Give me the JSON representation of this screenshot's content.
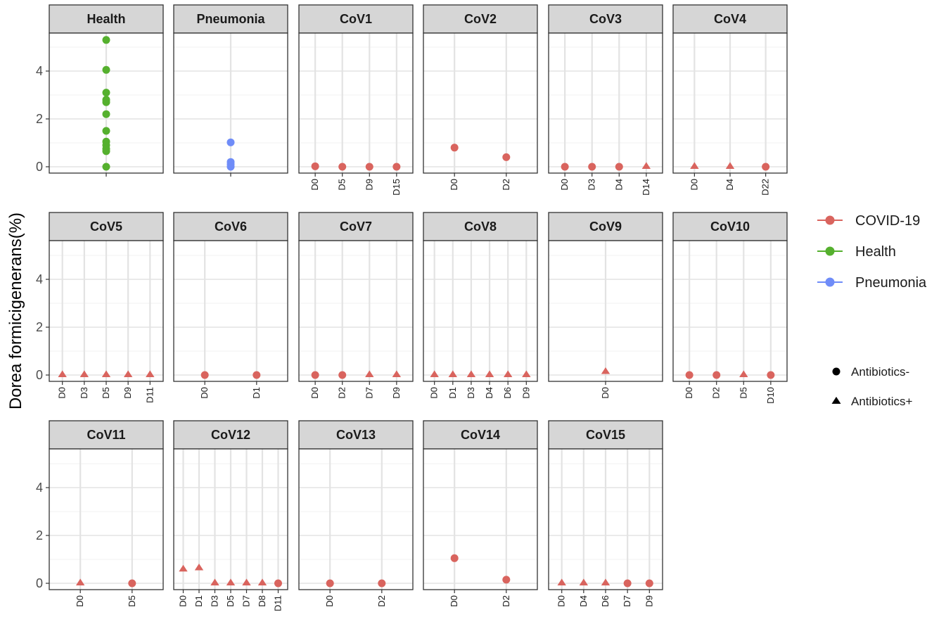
{
  "chart_data": {
    "type": "scatter",
    "ylabel": "Dorea formicigenerans(%)",
    "ylim": [
      0,
      5.6
    ],
    "yticks": [
      0,
      2,
      4
    ],
    "grid": true,
    "legend_position": "right",
    "colors": {
      "COVID-19": "#d9645e",
      "Health": "#55b02e",
      "Pneumonia": "#6f8cf8"
    },
    "legend": {
      "groups": [
        "COVID-19",
        "Health",
        "Pneumonia"
      ],
      "shapes": [
        {
          "label": "Antibiotics-",
          "shape": "circle"
        },
        {
          "label": "Antibiotics+",
          "shape": "triangle"
        }
      ]
    },
    "panels": [
      {
        "title": "Health",
        "group": "Health",
        "x": [
          ""
        ],
        "points": [
          {
            "x": "",
            "y": 5.3,
            "ab": "-"
          },
          {
            "x": "",
            "y": 4.05,
            "ab": "-"
          },
          {
            "x": "",
            "y": 3.1,
            "ab": "-"
          },
          {
            "x": "",
            "y": 2.8,
            "ab": "-"
          },
          {
            "x": "",
            "y": 2.7,
            "ab": "-"
          },
          {
            "x": "",
            "y": 2.2,
            "ab": "-"
          },
          {
            "x": "",
            "y": 1.5,
            "ab": "-"
          },
          {
            "x": "",
            "y": 1.05,
            "ab": "-"
          },
          {
            "x": "",
            "y": 0.9,
            "ab": "-"
          },
          {
            "x": "",
            "y": 0.75,
            "ab": "-"
          },
          {
            "x": "",
            "y": 0.65,
            "ab": "-"
          },
          {
            "x": "",
            "y": 0.0,
            "ab": "-"
          }
        ]
      },
      {
        "title": "Pneumonia",
        "group": "Pneumonia",
        "x": [
          ""
        ],
        "points": [
          {
            "x": "",
            "y": 1.02,
            "ab": "-"
          },
          {
            "x": "",
            "y": 0.2,
            "ab": "-"
          },
          {
            "x": "",
            "y": 0.1,
            "ab": "-"
          },
          {
            "x": "",
            "y": 0.0,
            "ab": "-"
          }
        ]
      },
      {
        "title": "CoV1",
        "group": "COVID-19",
        "x": [
          "D0",
          "D5",
          "D9",
          "D15"
        ],
        "points": [
          {
            "x": "D0",
            "y": 0.02,
            "ab": "-"
          },
          {
            "x": "D5",
            "y": 0.0,
            "ab": "-"
          },
          {
            "x": "D9",
            "y": 0.0,
            "ab": "-"
          },
          {
            "x": "D15",
            "y": 0.0,
            "ab": "-"
          }
        ]
      },
      {
        "title": "CoV2",
        "group": "COVID-19",
        "x": [
          "D0",
          "D2"
        ],
        "points": [
          {
            "x": "D0",
            "y": 0.8,
            "ab": "-"
          },
          {
            "x": "D2",
            "y": 0.4,
            "ab": "-"
          }
        ]
      },
      {
        "title": "CoV3",
        "group": "COVID-19",
        "x": [
          "D0",
          "D3",
          "D4",
          "D14"
        ],
        "points": [
          {
            "x": "D0",
            "y": 0.0,
            "ab": "-"
          },
          {
            "x": "D3",
            "y": 0.0,
            "ab": "-"
          },
          {
            "x": "D4",
            "y": 0.0,
            "ab": "-"
          },
          {
            "x": "D14",
            "y": 0.02,
            "ab": "+"
          }
        ]
      },
      {
        "title": "CoV4",
        "group": "COVID-19",
        "x": [
          "D0",
          "D4",
          "D22"
        ],
        "points": [
          {
            "x": "D0",
            "y": 0.02,
            "ab": "+"
          },
          {
            "x": "D4",
            "y": 0.02,
            "ab": "+"
          },
          {
            "x": "D22",
            "y": 0.0,
            "ab": "-"
          }
        ]
      },
      {
        "title": "CoV5",
        "group": "COVID-19",
        "x": [
          "D0",
          "D3",
          "D5",
          "D9",
          "D11"
        ],
        "points": [
          {
            "x": "D0",
            "y": 0.02,
            "ab": "+"
          },
          {
            "x": "D3",
            "y": 0.02,
            "ab": "+"
          },
          {
            "x": "D5",
            "y": 0.02,
            "ab": "+"
          },
          {
            "x": "D9",
            "y": 0.02,
            "ab": "+"
          },
          {
            "x": "D11",
            "y": 0.02,
            "ab": "+"
          }
        ]
      },
      {
        "title": "CoV6",
        "group": "COVID-19",
        "x": [
          "D0",
          "D1"
        ],
        "points": [
          {
            "x": "D0",
            "y": 0.0,
            "ab": "-"
          },
          {
            "x": "D1",
            "y": 0.0,
            "ab": "-"
          }
        ]
      },
      {
        "title": "CoV7",
        "group": "COVID-19",
        "x": [
          "D0",
          "D2",
          "D7",
          "D9"
        ],
        "points": [
          {
            "x": "D0",
            "y": 0.0,
            "ab": "-"
          },
          {
            "x": "D2",
            "y": 0.0,
            "ab": "-"
          },
          {
            "x": "D7",
            "y": 0.02,
            "ab": "+"
          },
          {
            "x": "D9",
            "y": 0.02,
            "ab": "+"
          }
        ]
      },
      {
        "title": "CoV8",
        "group": "COVID-19",
        "x": [
          "D0",
          "D1",
          "D3",
          "D4",
          "D6",
          "D9"
        ],
        "points": [
          {
            "x": "D0",
            "y": 0.02,
            "ab": "+"
          },
          {
            "x": "D1",
            "y": 0.02,
            "ab": "+"
          },
          {
            "x": "D3",
            "y": 0.02,
            "ab": "+"
          },
          {
            "x": "D4",
            "y": 0.02,
            "ab": "+"
          },
          {
            "x": "D6",
            "y": 0.02,
            "ab": "+"
          },
          {
            "x": "D9",
            "y": 0.02,
            "ab": "+"
          }
        ]
      },
      {
        "title": "CoV9",
        "group": "COVID-19",
        "x": [
          "D0"
        ],
        "points": [
          {
            "x": "D0",
            "y": 0.15,
            "ab": "+"
          }
        ]
      },
      {
        "title": "CoV10",
        "group": "COVID-19",
        "x": [
          "D0",
          "D2",
          "D5",
          "D10"
        ],
        "points": [
          {
            "x": "D0",
            "y": 0.0,
            "ab": "-"
          },
          {
            "x": "D2",
            "y": 0.0,
            "ab": "-"
          },
          {
            "x": "D5",
            "y": 0.02,
            "ab": "+"
          },
          {
            "x": "D10",
            "y": 0.0,
            "ab": "-"
          }
        ]
      },
      {
        "title": "CoV11",
        "group": "COVID-19",
        "x": [
          "D0",
          "D5"
        ],
        "points": [
          {
            "x": "D0",
            "y": 0.02,
            "ab": "+"
          },
          {
            "x": "D5",
            "y": 0.0,
            "ab": "-"
          }
        ]
      },
      {
        "title": "CoV12",
        "group": "COVID-19",
        "x": [
          "D0",
          "D1",
          "D3",
          "D5",
          "D7",
          "D8",
          "D11"
        ],
        "points": [
          {
            "x": "D0",
            "y": 0.6,
            "ab": "+"
          },
          {
            "x": "D1",
            "y": 0.65,
            "ab": "+"
          },
          {
            "x": "D3",
            "y": 0.02,
            "ab": "+"
          },
          {
            "x": "D5",
            "y": 0.02,
            "ab": "+"
          },
          {
            "x": "D7",
            "y": 0.02,
            "ab": "+"
          },
          {
            "x": "D8",
            "y": 0.02,
            "ab": "+"
          },
          {
            "x": "D11",
            "y": 0.0,
            "ab": "-"
          }
        ]
      },
      {
        "title": "CoV13",
        "group": "COVID-19",
        "x": [
          "D0",
          "D2"
        ],
        "points": [
          {
            "x": "D0",
            "y": 0.0,
            "ab": "-"
          },
          {
            "x": "D2",
            "y": 0.0,
            "ab": "-"
          }
        ]
      },
      {
        "title": "CoV14",
        "group": "COVID-19",
        "x": [
          "D0",
          "D2"
        ],
        "points": [
          {
            "x": "D0",
            "y": 1.05,
            "ab": "-"
          },
          {
            "x": "D2",
            "y": 0.15,
            "ab": "-"
          }
        ]
      },
      {
        "title": "CoV15",
        "group": "COVID-19",
        "x": [
          "D0",
          "D4",
          "D6",
          "D7",
          "D9"
        ],
        "points": [
          {
            "x": "D0",
            "y": 0.02,
            "ab": "+"
          },
          {
            "x": "D4",
            "y": 0.02,
            "ab": "+"
          },
          {
            "x": "D6",
            "y": 0.02,
            "ab": "+"
          },
          {
            "x": "D7",
            "y": 0.0,
            "ab": "-"
          },
          {
            "x": "D9",
            "y": 0.0,
            "ab": "-"
          }
        ]
      }
    ]
  }
}
